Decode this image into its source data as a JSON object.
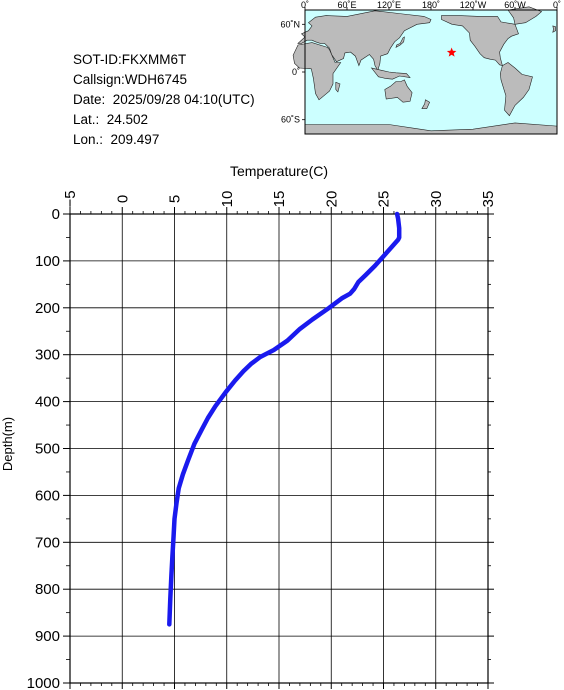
{
  "info": {
    "sot_id": "SOT-ID:FKXMM6T",
    "callsign": "Callsign:WDH6745",
    "date": "Date:  2025/09/28 04:10(UTC)",
    "lat": "Lat.:  24.502",
    "lon": "Lon.:  209.497"
  },
  "map": {
    "lon_labels": [
      "0˚",
      "60˚E",
      "120˚E",
      "180˚",
      "120˚W",
      "60˚W",
      "0˚"
    ],
    "lat_labels": [
      "60˚N",
      "0˚",
      "60˚S"
    ],
    "marker": {
      "lat": 24.502,
      "lon": 209.497,
      "color": "#ff0000"
    },
    "ocean_color": "#ccffff",
    "land_color": "#bbbbbb"
  },
  "chart_data": {
    "type": "line",
    "xlabel": "Temperature(C)",
    "ylabel": "Depth(m)",
    "xlim": [
      -5,
      35
    ],
    "ylim": [
      0,
      1000
    ],
    "y_inverted": true,
    "x_ticks": [
      -5,
      0,
      5,
      10,
      15,
      20,
      25,
      30,
      35
    ],
    "y_ticks": [
      0,
      100,
      200,
      300,
      400,
      500,
      600,
      700,
      800,
      900,
      1000
    ],
    "x_tick_labels": [
      "−5",
      "0",
      "5",
      "10",
      "15",
      "20",
      "25",
      "30",
      "35"
    ],
    "y_tick_labels": [
      "0",
      "100",
      "200",
      "300",
      "400",
      "500",
      "600",
      "700",
      "800",
      "900",
      "1000"
    ],
    "grid": true,
    "line_color": "#1a1aee",
    "series": [
      {
        "x": [
          26.3,
          26.4,
          26.5,
          26.5,
          26.4,
          25.8,
          25.0,
          24.2,
          23.3,
          22.6,
          22.2,
          21.8,
          21.0,
          19.8,
          18.2,
          17.0,
          15.8,
          14.5,
          13.2,
          12.3,
          11.6,
          10.8,
          9.9,
          8.9,
          8.2,
          7.6,
          6.9,
          6.3,
          5.8,
          5.4,
          5.2,
          5.0,
          4.9,
          4.8,
          4.7,
          4.6,
          4.5
        ],
        "y": [
          0,
          10,
          30,
          50,
          55,
          70,
          90,
          110,
          130,
          145,
          160,
          170,
          180,
          200,
          225,
          245,
          270,
          290,
          305,
          320,
          335,
          355,
          380,
          410,
          435,
          460,
          490,
          525,
          555,
          585,
          615,
          650,
          690,
          730,
          770,
          820,
          875
        ]
      }
    ]
  }
}
